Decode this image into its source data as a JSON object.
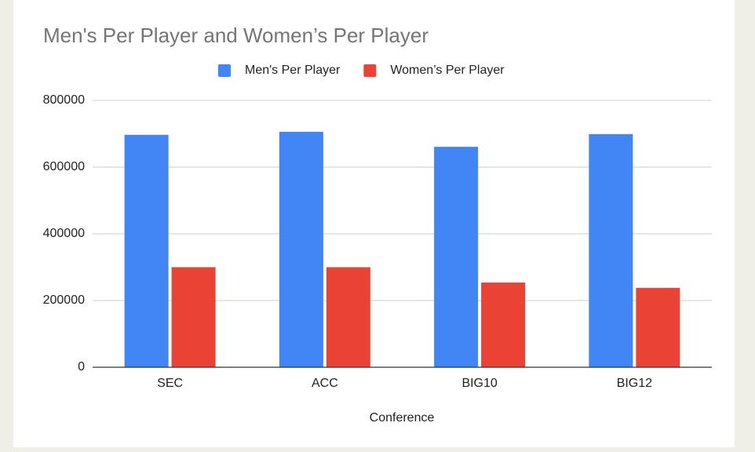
{
  "chart_data": {
    "type": "bar",
    "title": "Men's Per Player and  Women’s Per Player",
    "x_label": "Conference",
    "categories": [
      "SEC",
      "ACC",
      "BIG10",
      "BIG12"
    ],
    "series": [
      {
        "name": "Men's Per Player",
        "color": "#4285f4",
        "values": [
          697000,
          706000,
          661000,
          699000
        ]
      },
      {
        "name": "Women’s Per Player",
        "color": "#ea4335",
        "values": [
          300000,
          300000,
          254000,
          238000
        ]
      }
    ],
    "ylim": [
      0,
      800000
    ],
    "yticks": [
      0,
      200000,
      400000,
      600000,
      800000
    ],
    "grid": true,
    "legend": "top"
  }
}
